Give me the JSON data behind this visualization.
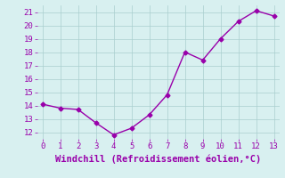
{
  "x": [
    0,
    1,
    2,
    3,
    4,
    5,
    6,
    7,
    8,
    9,
    10,
    11,
    12,
    13
  ],
  "y": [
    14.1,
    13.8,
    13.7,
    12.7,
    11.8,
    12.3,
    13.3,
    14.8,
    18.0,
    17.4,
    19.0,
    20.3,
    21.1,
    20.7
  ],
  "xlim": [
    -0.3,
    13.3
  ],
  "ylim": [
    11.5,
    21.5
  ],
  "xticks": [
    0,
    1,
    2,
    3,
    4,
    5,
    6,
    7,
    8,
    9,
    10,
    11,
    12,
    13
  ],
  "yticks": [
    12,
    13,
    14,
    15,
    16,
    17,
    18,
    19,
    20,
    21
  ],
  "xlabel": "Windchill (Refroidissement éolien,°C)",
  "line_color": "#9900aa",
  "marker": "D",
  "marker_size": 2.5,
  "line_width": 1.0,
  "background_color": "#d8f0f0",
  "grid_color": "#aacece",
  "tick_color": "#9900aa",
  "label_color": "#9900aa",
  "xlabel_fontsize": 7.5,
  "tick_fontsize": 6.5
}
